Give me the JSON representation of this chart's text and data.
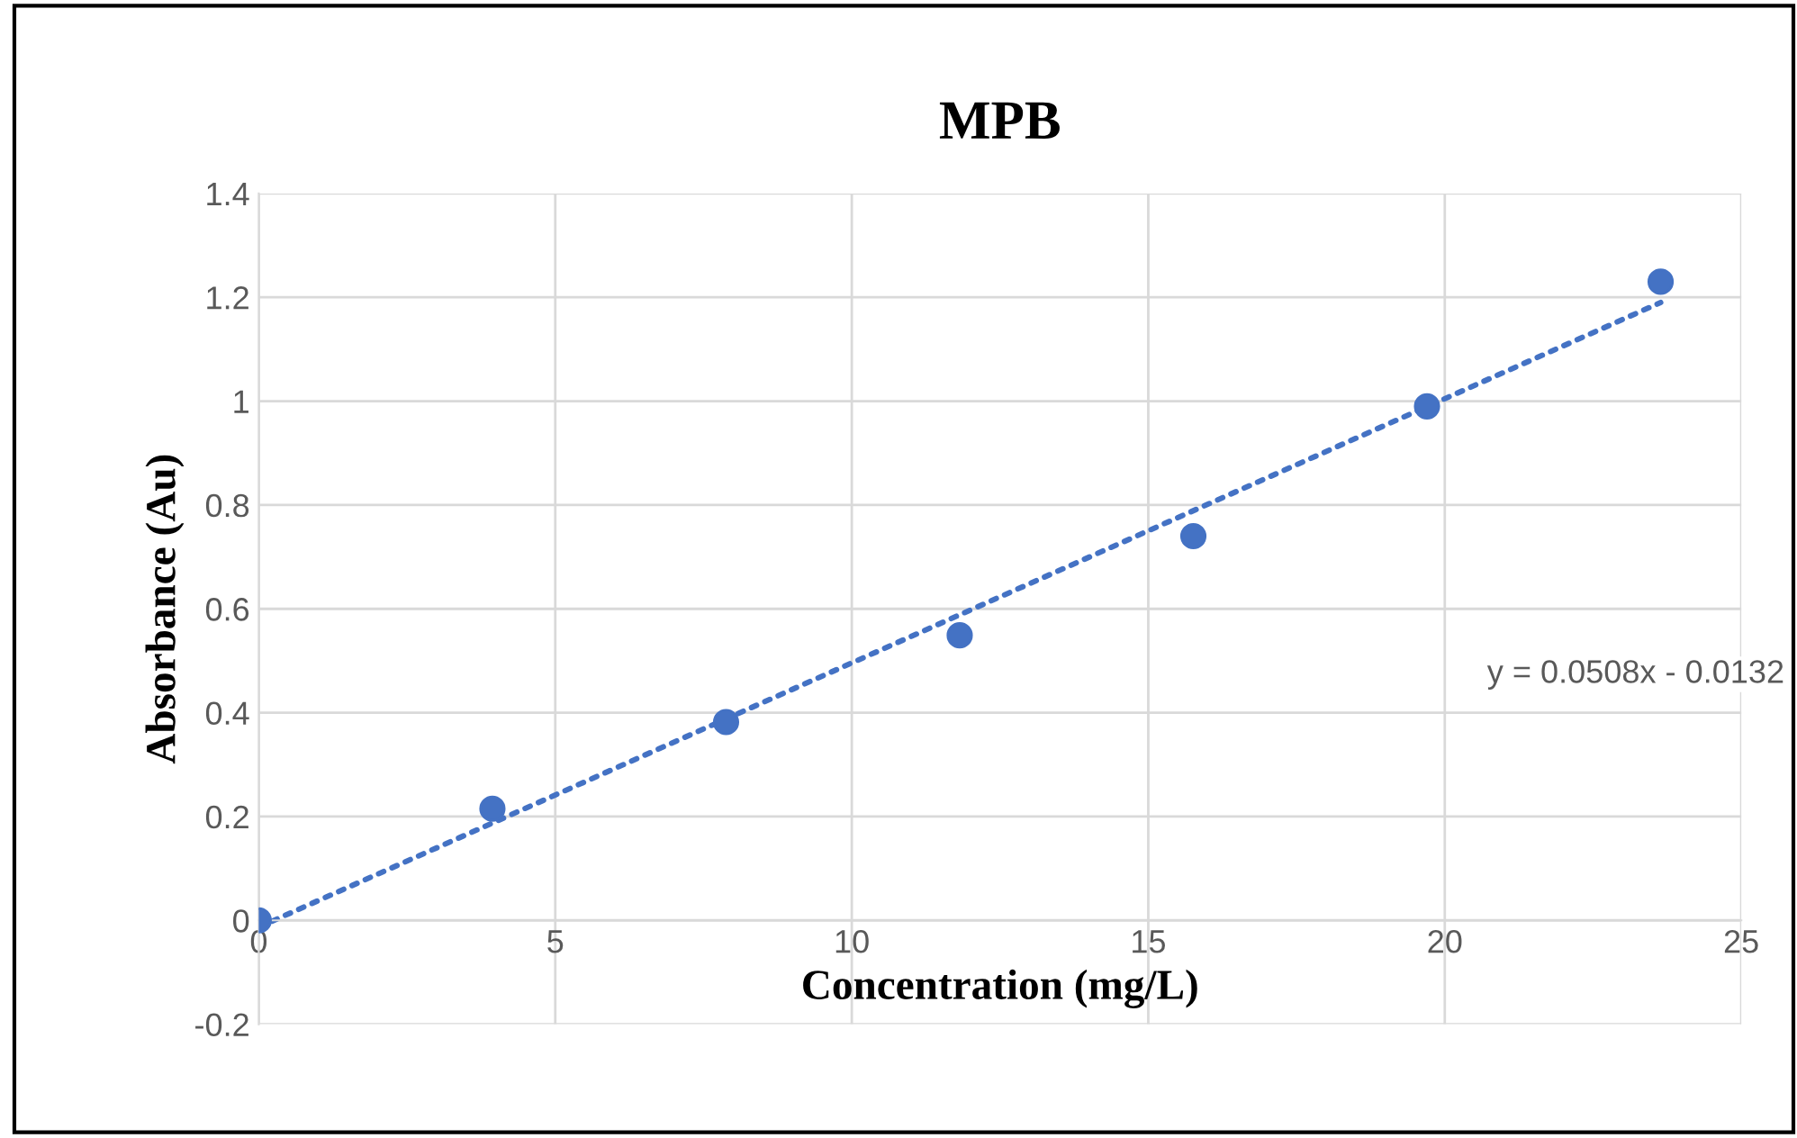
{
  "chart_data": {
    "type": "scatter",
    "title": "MPB",
    "xlabel": "Concentration (mg/L)",
    "ylabel": "Absorbance (Au)",
    "series": [
      {
        "color": "#4472c4",
        "x": [
          0,
          3.94,
          7.88,
          11.82,
          15.76,
          19.7,
          23.64
        ],
        "values": [
          0,
          0.215,
          0.382,
          0.549,
          0.74,
          0.99,
          1.23
        ]
      },
      {
        "type": "line",
        "color": "#4472c4",
        "line_style": "dotted",
        "marker": "none",
        "x": [
          0,
          23.64
        ],
        "values": [
          -0.013,
          1.19
        ]
      }
    ],
    "annotations": [
      "y = 0.0508x - 0.0132"
    ],
    "xlim": [
      0,
      25
    ],
    "xticks": [
      0,
      5,
      10,
      15,
      20,
      25
    ],
    "ylim": [
      -0.2,
      1.4
    ],
    "yticks": [
      -0.2,
      0,
      0.2,
      0.4,
      0.6,
      0.8,
      1,
      1.2,
      1.4
    ],
    "grid": true,
    "marker": "circle",
    "legend": false
  }
}
